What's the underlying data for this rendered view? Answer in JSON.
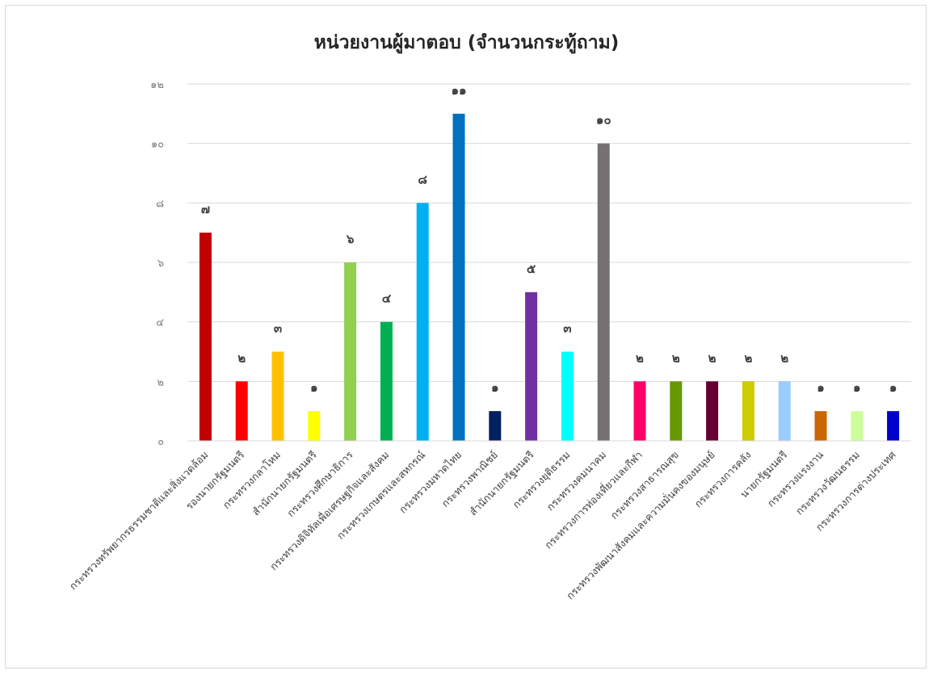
{
  "chart_data": {
    "type": "bar",
    "title": "หน่วยงานผู้มาตอบ (จำนวนกระทู้ถาม)",
    "xlabel": "",
    "ylabel": "",
    "ylim": [
      0,
      12
    ],
    "y_ticks": [
      {
        "value": 0,
        "label": "๐"
      },
      {
        "value": 2,
        "label": "๒"
      },
      {
        "value": 4,
        "label": "๔"
      },
      {
        "value": 6,
        "label": "๖"
      },
      {
        "value": 8,
        "label": "๘"
      },
      {
        "value": 10,
        "label": "๑๐"
      },
      {
        "value": 12,
        "label": "๑๒"
      }
    ],
    "grid": true,
    "legend": "none",
    "categories": [
      "กระทรวงทรัพยากรธรรมชาติและสิ่งแวดล้อม",
      "รองนายกรัฐมนตรี",
      "กระทรวงกลาโหม",
      "สำนักนายกรัฐมนตรี",
      "กระทรวงศึกษาธิการ",
      "กระทรวงดิจิทัลเพื่อเศรษฐกิจและสังคม",
      "กระทรวงเกษตรและสหกรณ์",
      "กระทรวงมหาดไทย",
      "กระทรวงพาณิชย์",
      "สำนักนายกรัฐมนตรี",
      "กระทรวงยุติธรรม",
      "กระทรวงคมนาคม",
      "กระทรวงการท่องเที่ยวและกีฬา",
      "กระทรวงสาธารณสุข",
      "กระทรวงพัฒนาสังคมและความมั่นคงของมนุษย์",
      "กระทรวงการคลัง",
      "นายกรัฐมนตรี",
      "กระทรวงแรงงาน",
      "กระทรวงวัฒนธรรม",
      "กระทรวงการต่างประเทศ"
    ],
    "values": [
      7,
      2,
      3,
      1,
      6,
      4,
      8,
      11,
      1,
      5,
      3,
      10,
      2,
      2,
      2,
      2,
      2,
      1,
      1,
      1
    ],
    "value_labels": [
      "๗",
      "๒",
      "๓",
      "๑",
      "๖",
      "๔",
      "๘",
      "๑๑",
      "๑",
      "๕",
      "๓",
      "๑๐",
      "๒",
      "๒",
      "๒",
      "๒",
      "๒",
      "๑",
      "๑",
      "๑"
    ],
    "colors": [
      "#c00000",
      "#ff0000",
      "#ffc000",
      "#ffff00",
      "#92d050",
      "#00b050",
      "#00b0f0",
      "#0070c0",
      "#002060",
      "#7030a0",
      "#00ffff",
      "#767171",
      "#ff0066",
      "#669900",
      "#660033",
      "#cccc00",
      "#99ccff",
      "#cc6600",
      "#ccff99",
      "#0000cc"
    ]
  }
}
